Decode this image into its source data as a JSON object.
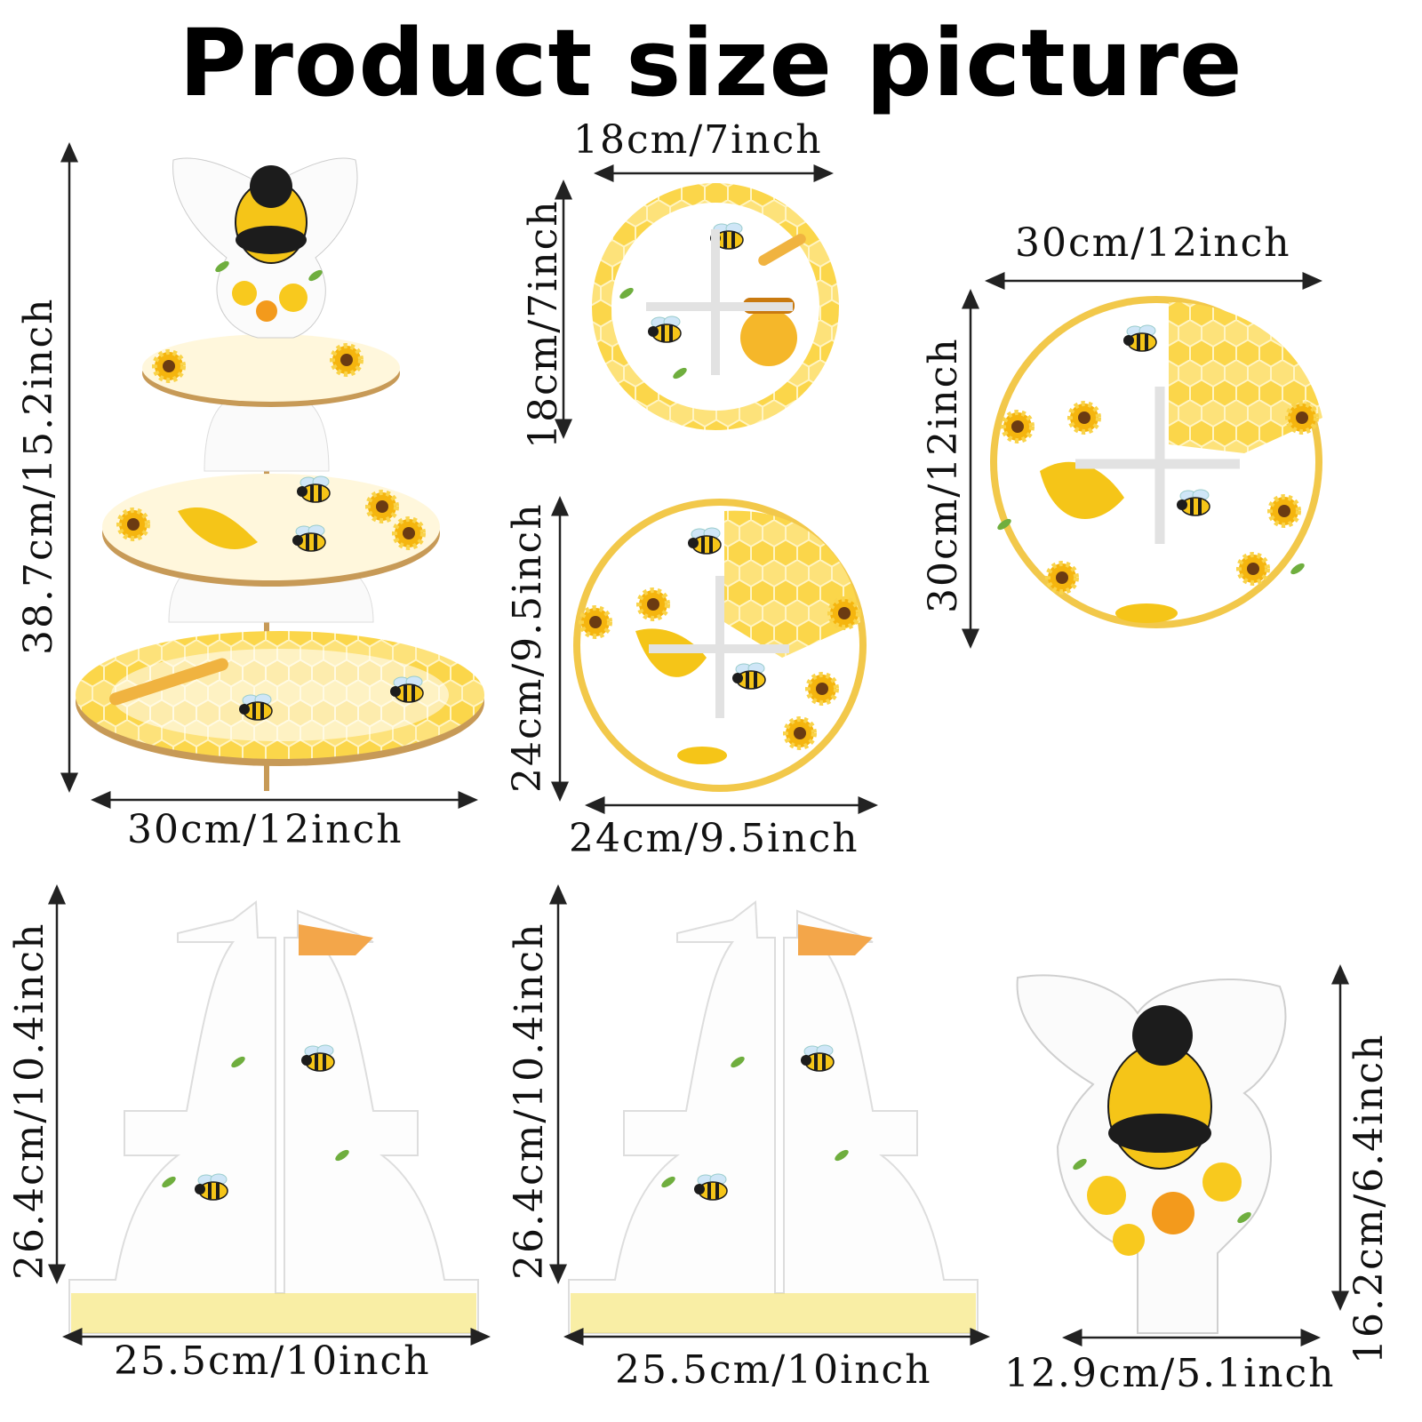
{
  "title": "Product size picture",
  "colors": {
    "honey": "#f5c518",
    "honey_dark": "#e8a200",
    "leaf": "#6fae3e",
    "bee_black": "#1c1c1c",
    "flower_orange": "#f39a1c",
    "arrow": "#222222"
  },
  "dimensions": {
    "stand_height": "38.7cm/15.2inch",
    "stand_width": "30cm/12inch",
    "small_plate_width": "18cm/7inch",
    "small_plate_height": "18cm/7inch",
    "medium_plate_height": "24cm/9.5inch",
    "medium_plate_width": "24cm/9.5inch",
    "large_plate_width": "30cm/12inch",
    "large_plate_height": "30cm/12inch",
    "support1_height": "26.4cm/10.4inch",
    "support1_width": "25.5cm/10inch",
    "support2_height": "26.4cm/10.4inch",
    "support2_width": "25.5cm/10inch",
    "topper_height": "16.2cm/6.4inch",
    "topper_width": "12.9cm/5.1inch"
  }
}
